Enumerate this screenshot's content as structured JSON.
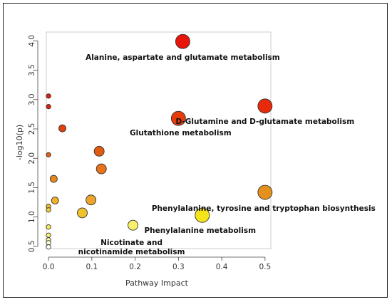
{
  "chart_data": {
    "type": "scatter",
    "title": "",
    "xlabel": "Pathway Impact",
    "ylabel": "-log10(p)",
    "xlim": [
      -0.01,
      0.52
    ],
    "ylim": [
      0.45,
      4.15
    ],
    "x_ticks": [
      "0.0",
      "0.1",
      "0.2",
      "0.3",
      "0.4",
      "0.5"
    ],
    "y_ticks": [
      "0.5",
      "1.0",
      "1.5",
      "2.0",
      "2.5",
      "3.0",
      "3.5",
      "4.0"
    ],
    "grid": false,
    "legend": "none",
    "color_scale": "higher -log10(p) → red, lower → yellow/white",
    "points": [
      {
        "x": 0.31,
        "y": 3.99,
        "size": "large",
        "color": "#e8160a"
      },
      {
        "x": 0.5,
        "y": 2.89,
        "size": "large",
        "color": "#e82a0b"
      },
      {
        "x": 0.3,
        "y": 2.68,
        "size": "large",
        "color": "#e63c0b"
      },
      {
        "x": 0.5,
        "y": 1.42,
        "size": "large",
        "color": "#e5901c"
      },
      {
        "x": 0.355,
        "y": 1.03,
        "size": "large",
        "color": "#f6e41b"
      },
      {
        "x": 0.195,
        "y": 0.86,
        "size": "medium",
        "color": "#f8f06a"
      },
      {
        "x": 0.117,
        "y": 2.12,
        "size": "medium",
        "color": "#e05a10"
      },
      {
        "x": 0.122,
        "y": 1.82,
        "size": "medium",
        "color": "#e8731a"
      },
      {
        "x": 0.098,
        "y": 1.29,
        "size": "medium",
        "color": "#eba52b"
      },
      {
        "x": 0.078,
        "y": 1.07,
        "size": "medium",
        "color": "#f0c32b"
      },
      {
        "x": 0.032,
        "y": 2.51,
        "size": "small",
        "color": "#e0400c"
      },
      {
        "x": 0.012,
        "y": 1.65,
        "size": "small",
        "color": "#e8861c"
      },
      {
        "x": 0.015,
        "y": 1.28,
        "size": "small",
        "color": "#f0b12a"
      },
      {
        "x": 0.0,
        "y": 3.06,
        "size": "tiny",
        "color": "#e01d0a"
      },
      {
        "x": 0.0,
        "y": 2.88,
        "size": "tiny",
        "color": "#e0200a"
      },
      {
        "x": 0.0,
        "y": 2.06,
        "size": "tiny",
        "color": "#e0600f"
      },
      {
        "x": 0.0,
        "y": 1.18,
        "size": "tiny",
        "color": "#f0c02a"
      },
      {
        "x": 0.0,
        "y": 1.12,
        "size": "tiny",
        "color": "#f3cc3b"
      },
      {
        "x": 0.0,
        "y": 0.83,
        "size": "tiny",
        "color": "#f8eb55"
      },
      {
        "x": 0.0,
        "y": 0.69,
        "size": "tiny",
        "color": "#faf27a"
      },
      {
        "x": 0.0,
        "y": 0.61,
        "size": "tiny",
        "color": "#fbf7a8"
      },
      {
        "x": 0.0,
        "y": 0.56,
        "size": "tiny",
        "color": "#fdfbd0"
      },
      {
        "x": 0.0,
        "y": 0.49,
        "size": "tiny",
        "color": "#fffff4"
      }
    ],
    "annotations": [
      {
        "text": [
          "Alanine, aspartate and glutamate metabolism"
        ],
        "x": 0.31,
        "y": 3.99
      },
      {
        "text": [
          "D-Glutamine and D-glutamate metabolism"
        ],
        "x": 0.5,
        "y": 2.89
      },
      {
        "text": [
          "Glutathione metabolism"
        ],
        "x": 0.3,
        "y": 2.68
      },
      {
        "text": [
          "Phenylalanine, tyrosine and tryptophan biosynthesis"
        ],
        "x": 0.5,
        "y": 1.42
      },
      {
        "text": [
          "Phenylalanine metabolism"
        ],
        "x": 0.355,
        "y": 1.03
      },
      {
        "text": [
          "Nicotinate and",
          "nicotinamide metabolism"
        ],
        "x": 0.195,
        "y": 0.86
      }
    ]
  }
}
